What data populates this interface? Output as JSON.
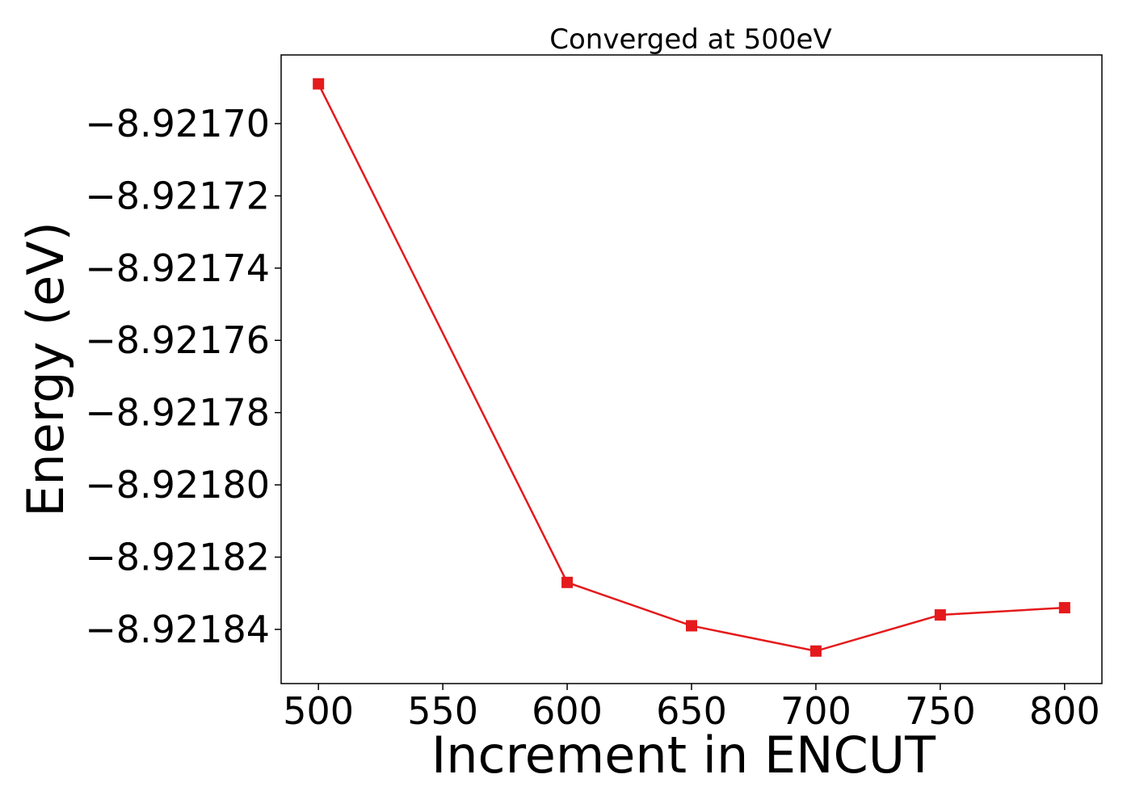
{
  "chart_data": {
    "type": "line",
    "title": "Converged at 500eV",
    "xlabel": "Increment in ENCUT",
    "ylabel": "Energy (eV)",
    "x": [
      500,
      600,
      650,
      700,
      750,
      800
    ],
    "series": [
      {
        "values": [
          -8.921689,
          -8.921827,
          -8.921839,
          -8.921846,
          -8.921836,
          -8.921834
        ],
        "color": "#e41a1c",
        "marker": "square"
      }
    ],
    "xlim": [
      485,
      815
    ],
    "ylim": [
      -8.921855,
      -8.921681
    ],
    "xticks": [
      500,
      550,
      600,
      650,
      700,
      750,
      800
    ],
    "xtick_labels": [
      "500",
      "550",
      "600",
      "650",
      "700",
      "750",
      "800"
    ],
    "yticks": [
      -8.9217,
      -8.92172,
      -8.92174,
      -8.92176,
      -8.92178,
      -8.9218,
      -8.92182,
      -8.92184
    ],
    "ytick_labels": [
      "−8.92170",
      "−8.92172",
      "−8.92174",
      "−8.92176",
      "−8.92178",
      "−8.92180",
      "−8.92182",
      "−8.92184"
    ],
    "grid": false,
    "legend": false
  }
}
